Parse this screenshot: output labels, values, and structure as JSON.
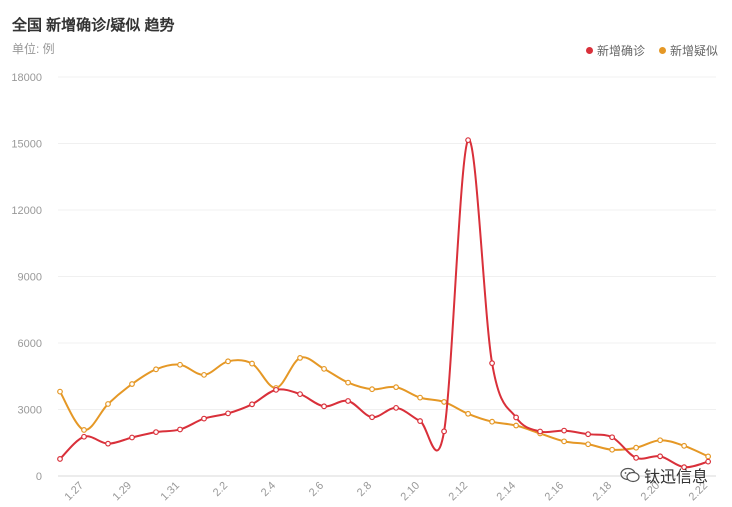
{
  "title": "全国 新增确诊/疑似 趋势",
  "unit_label": "单位: 例",
  "legend": [
    {
      "label": "新增确诊",
      "color": "#d9303a"
    },
    {
      "label": "新增疑似",
      "color": "#e59826"
    }
  ],
  "watermark": {
    "text": "钛迅信息",
    "icon": "wechat-icon"
  },
  "chart_data": {
    "type": "line",
    "title": "全国 新增确诊/疑似 趋势",
    "ylabel": "",
    "xlabel": "",
    "ylim": [
      0,
      18000
    ],
    "yticks": [
      0,
      3000,
      6000,
      9000,
      12000,
      15000,
      18000
    ],
    "x": [
      "1.26",
      "1.27",
      "1.28",
      "1.29",
      "1.30",
      "1.31",
      "2.1",
      "2.2",
      "2.3",
      "2.4",
      "2.5",
      "2.6",
      "2.7",
      "2.8",
      "2.9",
      "2.10",
      "2.11",
      "2.12",
      "2.13",
      "2.14",
      "2.15",
      "2.16",
      "2.17",
      "2.18",
      "2.19",
      "2.20",
      "2.21",
      "2.22"
    ],
    "xtick_labels": [
      "1.27",
      "1.29",
      "1.31",
      "2.2",
      "2.4",
      "2.6",
      "2.8",
      "2.10",
      "2.12",
      "2.14",
      "2.16",
      "2.18",
      "2.20",
      "2.22"
    ],
    "grid": true,
    "legend_position": "top-right",
    "series": [
      {
        "name": "新增确诊",
        "color": "#d9303a",
        "values": [
          769,
          1771,
          1459,
          1737,
          1981,
          2099,
          2589,
          2825,
          3235,
          3887,
          3694,
          3143,
          3385,
          2652,
          3073,
          2478,
          2015,
          15152,
          5090,
          2641,
          2008,
          2048,
          1886,
          1749,
          820,
          889,
          397,
          648
        ]
      },
      {
        "name": "新增疑似",
        "color": "#e59826",
        "values": [
          3806,
          2077,
          3248,
          4148,
          4812,
          5019,
          4562,
          5173,
          5072,
          3971,
          5328,
          4833,
          4214,
          3916,
          4008,
          3536,
          3342,
          2807,
          2450,
          2277,
          1918,
          1563,
          1432,
          1185,
          1277,
          1614,
          1361,
          882
        ]
      }
    ]
  }
}
